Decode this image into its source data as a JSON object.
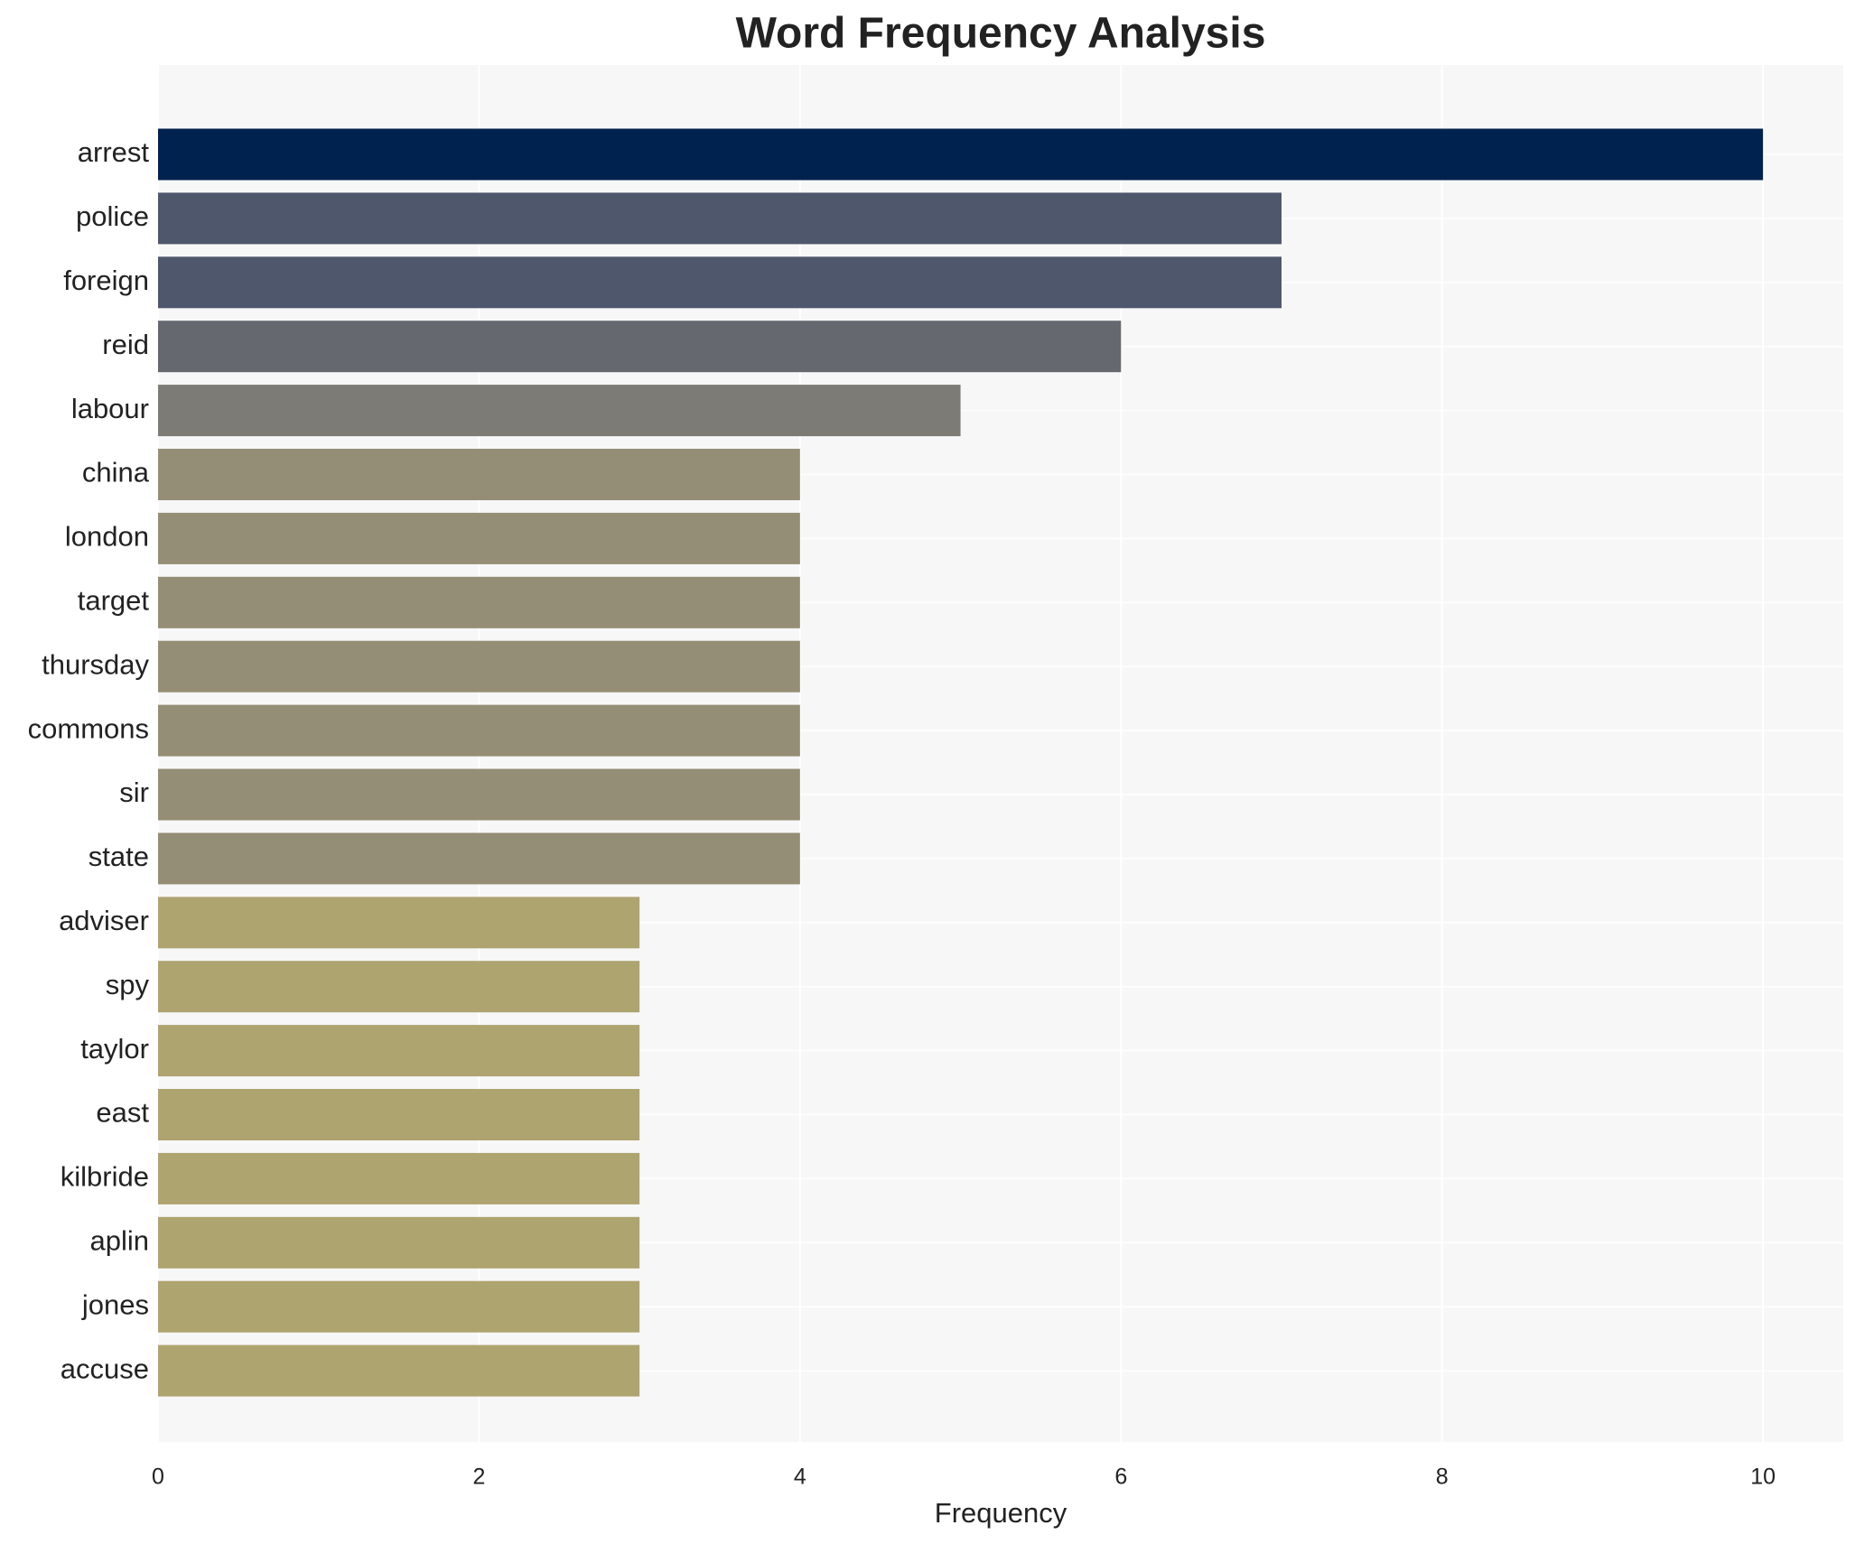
{
  "chart_data": {
    "type": "barh",
    "title": "Word Frequency Analysis",
    "x_label": "Frequency",
    "categories": [
      "arrest",
      "police",
      "foreign",
      "reid",
      "labour",
      "china",
      "london",
      "target",
      "thursday",
      "commons",
      "sir",
      "state",
      "adviser",
      "spy",
      "taylor",
      "east",
      "kilbride",
      "aplin",
      "jones",
      "accuse"
    ],
    "values": [
      10,
      7,
      7,
      6,
      5,
      4,
      4,
      4,
      4,
      4,
      4,
      4,
      3,
      3,
      3,
      3,
      3,
      3,
      3,
      3
    ],
    "colors": [
      "#00224e",
      "#4f576d",
      "#4f576d",
      "#666870",
      "#7d7b76",
      "#958e76",
      "#958e76",
      "#958e76",
      "#958e76",
      "#958e76",
      "#958e76",
      "#958e76",
      "#aea470",
      "#aea470",
      "#aea470",
      "#aea470",
      "#aea470",
      "#aea470",
      "#aea470",
      "#aea470"
    ],
    "xlim": [
      0,
      10.5
    ],
    "xticks": [
      0,
      2,
      4,
      6,
      8,
      10
    ],
    "grid": true
  }
}
